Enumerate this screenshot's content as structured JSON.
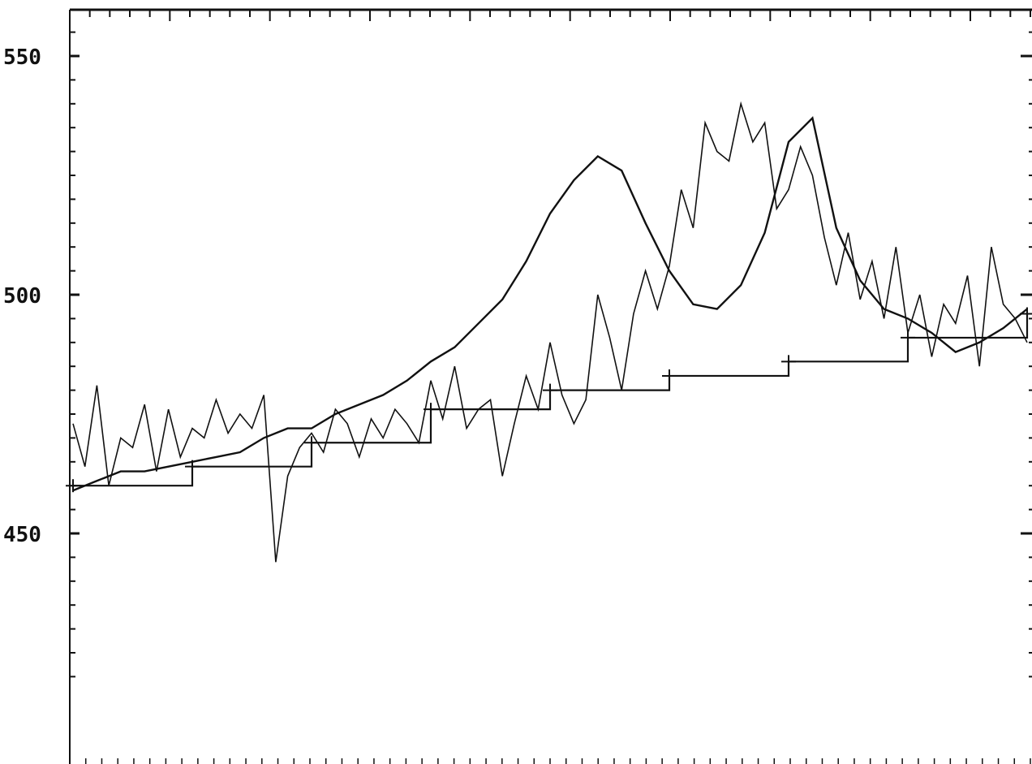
{
  "chart_data": {
    "type": "line",
    "title": "",
    "xlabel": "",
    "ylabel": "",
    "ylim": [
      420,
      560
    ],
    "yticks_labeled": [
      "550",
      "500",
      "450"
    ],
    "ytick_values": [
      550,
      500,
      450
    ],
    "grid": false,
    "legend": "none",
    "colors": {
      "ink": "#111111",
      "paper": "#ffffff"
    },
    "series": [
      {
        "name": "",
        "style": "raw",
        "x": [
          0,
          5,
          10,
          15,
          20,
          25,
          30,
          35,
          40,
          45,
          50,
          55,
          60,
          65,
          70,
          75,
          80,
          85,
          90,
          95,
          100,
          105,
          110,
          115,
          120,
          125,
          130,
          135,
          140,
          145,
          150,
          155,
          160,
          165,
          170,
          175,
          180,
          185,
          190,
          195,
          200,
          205,
          210,
          215,
          220,
          225,
          230,
          235,
          240,
          245,
          250,
          255,
          260,
          265,
          270,
          275,
          280,
          285,
          290,
          295,
          300,
          305,
          310,
          315,
          320,
          325,
          330,
          335,
          340,
          345,
          350,
          355,
          360,
          365,
          370,
          375,
          380,
          385,
          390,
          395,
          400
        ],
        "values": [
          473,
          464,
          481,
          460,
          470,
          468,
          477,
          463,
          476,
          466,
          472,
          470,
          478,
          471,
          475,
          472,
          479,
          444,
          462,
          468,
          471,
          467,
          476,
          473,
          466,
          474,
          470,
          476,
          473,
          469,
          482,
          474,
          485,
          472,
          476,
          478,
          462,
          473,
          483,
          476,
          490,
          479,
          473,
          478,
          500,
          491,
          480,
          496,
          505,
          497,
          506,
          522,
          514,
          536,
          530,
          528,
          540,
          532,
          536,
          518,
          522,
          531,
          525,
          512,
          502,
          513,
          499,
          507,
          495,
          510,
          492,
          500,
          487,
          498,
          494,
          504,
          485,
          510,
          498,
          495,
          490
        ]
      },
      {
        "name": "",
        "style": "smoothed",
        "x": [
          0,
          10,
          20,
          30,
          40,
          50,
          60,
          70,
          80,
          90,
          100,
          110,
          120,
          130,
          140,
          150,
          160,
          170,
          180,
          190,
          200,
          210,
          220,
          230,
          240,
          250,
          260,
          270,
          280,
          290,
          300,
          310,
          320,
          330,
          340,
          350,
          360,
          370,
          380,
          390,
          400
        ],
        "values": [
          459,
          461,
          463,
          463,
          464,
          465,
          466,
          467,
          470,
          472,
          472,
          475,
          477,
          479,
          482,
          486,
          489,
          494,
          499,
          507,
          517,
          524,
          529,
          526,
          515,
          505,
          498,
          497,
          502,
          513,
          532,
          537,
          514,
          503,
          497,
          495,
          492,
          488,
          490,
          493,
          497
        ]
      },
      {
        "name": "",
        "style": "trend",
        "x": [
          0,
          50,
          100,
          150,
          200,
          250,
          300,
          350,
          400
        ],
        "values": [
          460,
          464,
          469,
          476,
          480,
          483,
          486,
          491,
          496
        ]
      }
    ]
  }
}
